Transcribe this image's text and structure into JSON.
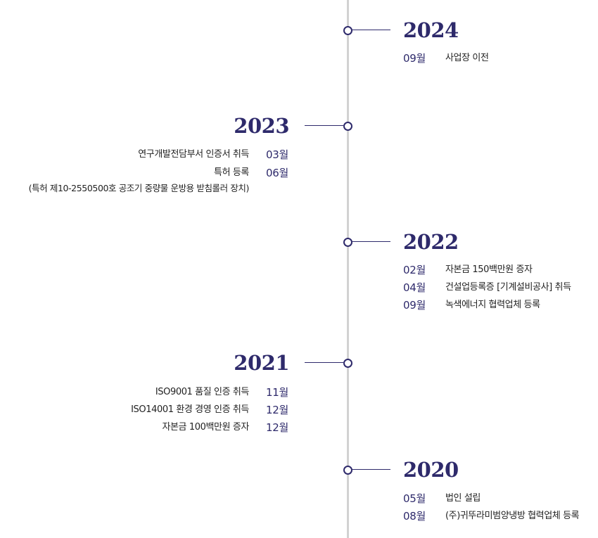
{
  "history": [
    {
      "year": "2024",
      "items": [
        {
          "month": "09월",
          "text": "사업장 이전"
        }
      ]
    },
    {
      "year": "2023",
      "items": [
        {
          "month": "03월",
          "text": "연구개발전담부서 인증서 취득"
        },
        {
          "month": "06월",
          "text": "특허 등록"
        },
        {
          "month": "",
          "text": "(특허 제10-2550500호 공조기 중량물 운방용 받침롤러 장치)"
        }
      ]
    },
    {
      "year": "2022",
      "items": [
        {
          "month": "02월",
          "text": "자본금 150백만원 증자"
        },
        {
          "month": "04월",
          "text": "건설업등록증 [기계설비공사] 취득"
        },
        {
          "month": "09월",
          "text": "녹색에너지 협력업체 등록"
        }
      ]
    },
    {
      "year": "2021",
      "items": [
        {
          "month": "11월",
          "text": "ISO9001 품질 인증 취득"
        },
        {
          "month": "12월",
          "text": "ISO14001 환경 경영 인증 취득"
        },
        {
          "month": "12월",
          "text": "자본금 100백만원 증자"
        }
      ]
    },
    {
      "year": "2020",
      "items": [
        {
          "month": "05월",
          "text": "법인 설립"
        },
        {
          "month": "08월",
          "text": "(주)귀뚜라미범양냉방 협력업체 등록"
        }
      ]
    }
  ]
}
